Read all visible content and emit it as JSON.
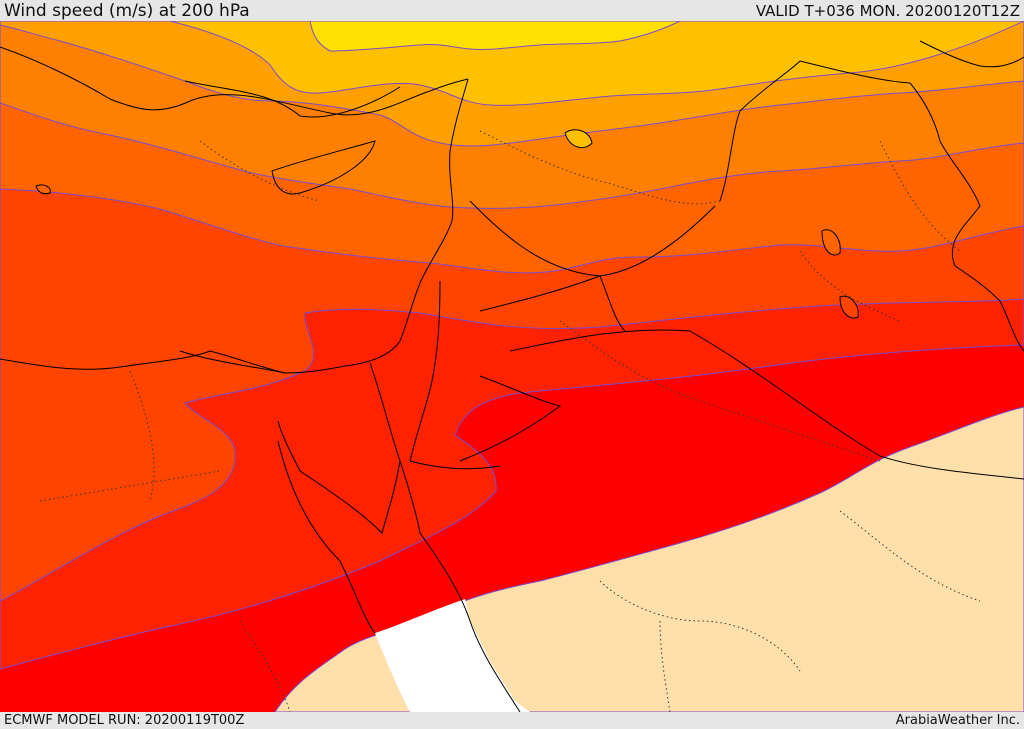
{
  "header": {
    "title": "Wind speed (m/s) at 200 hPa",
    "valid": "VALID T+036 MON. 20200120T12Z"
  },
  "footer": {
    "model_run": "ECMWF MODEL RUN: 20200119T00Z",
    "credit": "ArabiaWeather Inc."
  },
  "colors": {
    "band_yellow": "#ffe000",
    "band_light_orange": "#ffc000",
    "band_orange1": "#ffa000",
    "band_orange2": "#ff8000",
    "band_orange3": "#ff6400",
    "band_orange_red": "#ff4400",
    "band_red_orange": "#ff2200",
    "band_red": "#ff0000",
    "low_wind_tan": "#ffdfaa",
    "no_data_white": "#ffffff",
    "contour_line": "#7a4ad0",
    "coastline": "#000000"
  }
}
